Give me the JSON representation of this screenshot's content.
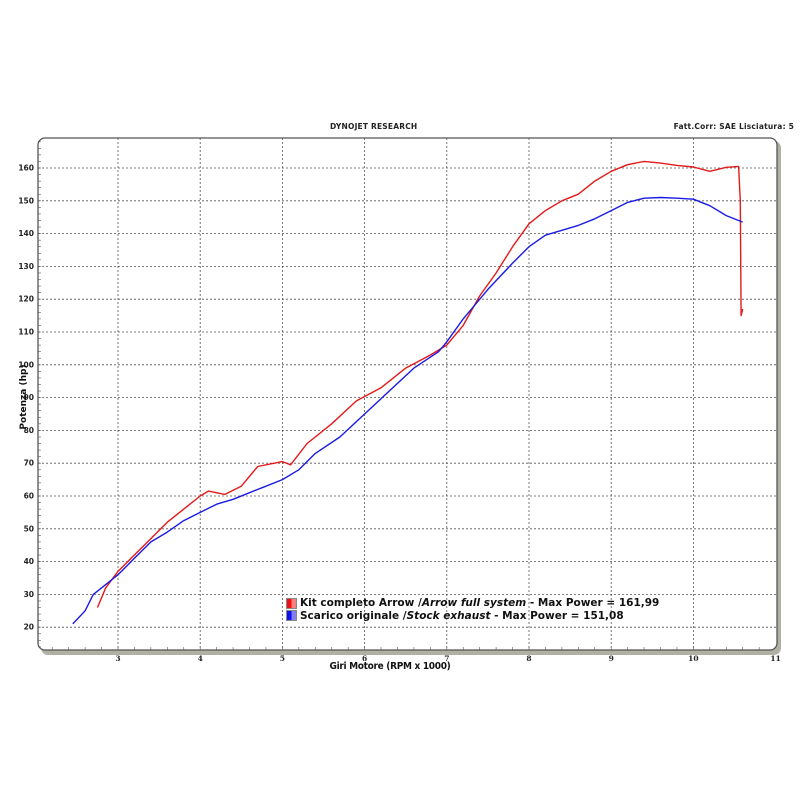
{
  "header": {
    "title": "DYNOJET RESEARCH",
    "correction": "Fatt.Corr: SAE  Lisciatura: 5"
  },
  "axes": {
    "ylabel": "Potenza (hp)",
    "xlabel": "Giri Motore (RPM x 1000)"
  },
  "legend": {
    "items": [
      {
        "prefix": "Kit completo Arrow / ",
        "italic": "Arrow full system",
        "suffix": " - Max Power = 161,99",
        "color": "#e41a1a"
      },
      {
        "prefix": "Scarico originale / ",
        "italic": "Stock exhaust",
        "suffix": " - Max Power = 151,08",
        "color": "#1a1ae4"
      }
    ]
  },
  "chart_data": {
    "type": "line",
    "title": "DYNOJET RESEARCH",
    "subtitle": "Fatt.Corr: SAE  Lisciatura: 5",
    "xlabel": "Giri Motore (RPM x 1000)",
    "ylabel": "Potenza (hp)",
    "xlim": [
      2.0,
      11.0
    ],
    "ylim": [
      13,
      170
    ],
    "xticks": [
      3,
      4,
      5,
      6,
      7,
      8,
      9,
      10,
      11
    ],
    "yticks": [
      20,
      30,
      40,
      50,
      60,
      70,
      80,
      90,
      100,
      110,
      120,
      130,
      140,
      150,
      160
    ],
    "grid": true,
    "legend_position": "lower center",
    "series": [
      {
        "name": "Kit completo Arrow / Arrow full system - Max Power = 161,99",
        "color": "#e41a1a",
        "max_power": 161.99,
        "x": [
          2.75,
          2.85,
          3.0,
          3.2,
          3.4,
          3.6,
          3.8,
          4.0,
          4.1,
          4.3,
          4.5,
          4.7,
          4.9,
          5.0,
          5.1,
          5.3,
          5.6,
          5.9,
          6.2,
          6.5,
          6.8,
          7.0,
          7.2,
          7.4,
          7.6,
          7.8,
          8.0,
          8.2,
          8.4,
          8.6,
          8.8,
          9.0,
          9.2,
          9.4,
          9.6,
          9.8,
          10.0,
          10.2,
          10.4,
          10.55,
          10.57,
          10.58,
          10.6
        ],
        "y": [
          26,
          32,
          37,
          42,
          47,
          52,
          56,
          60,
          61.5,
          60.5,
          63,
          69,
          70,
          70.5,
          69.5,
          76,
          82,
          89,
          93,
          99,
          103,
          106,
          112,
          121,
          128,
          136,
          143,
          147,
          150,
          152,
          156,
          159,
          161,
          162,
          161.5,
          160.8,
          160.3,
          159,
          160.2,
          160.5,
          150,
          115,
          117
        ]
      },
      {
        "name": "Scarico originale / Stock exhaust - Max Power = 151,08",
        "color": "#1a1ae4",
        "max_power": 151.08,
        "x": [
          2.45,
          2.6,
          2.7,
          2.9,
          3.0,
          3.2,
          3.4,
          3.6,
          3.8,
          4.0,
          4.2,
          4.4,
          4.6,
          4.8,
          5.0,
          5.2,
          5.4,
          5.7,
          6.0,
          6.3,
          6.6,
          6.9,
          7.0,
          7.2,
          7.5,
          7.8,
          8.0,
          8.2,
          8.4,
          8.6,
          8.8,
          9.0,
          9.2,
          9.4,
          9.6,
          9.8,
          10.0,
          10.2,
          10.4,
          10.6
        ],
        "y": [
          21,
          25,
          30,
          34,
          36,
          41,
          46,
          49,
          52.5,
          55,
          57.5,
          59,
          61,
          63,
          65,
          68,
          73,
          78,
          85,
          92,
          99,
          104,
          107,
          114,
          123,
          131,
          136,
          139.5,
          141,
          142.5,
          144.5,
          147,
          149.5,
          150.8,
          151,
          150.8,
          150.5,
          148.5,
          145.5,
          143.5
        ]
      }
    ]
  },
  "style": {
    "frame_color": "#555555",
    "shadow_color": "#a8a89a",
    "grid_color": "#444444"
  }
}
